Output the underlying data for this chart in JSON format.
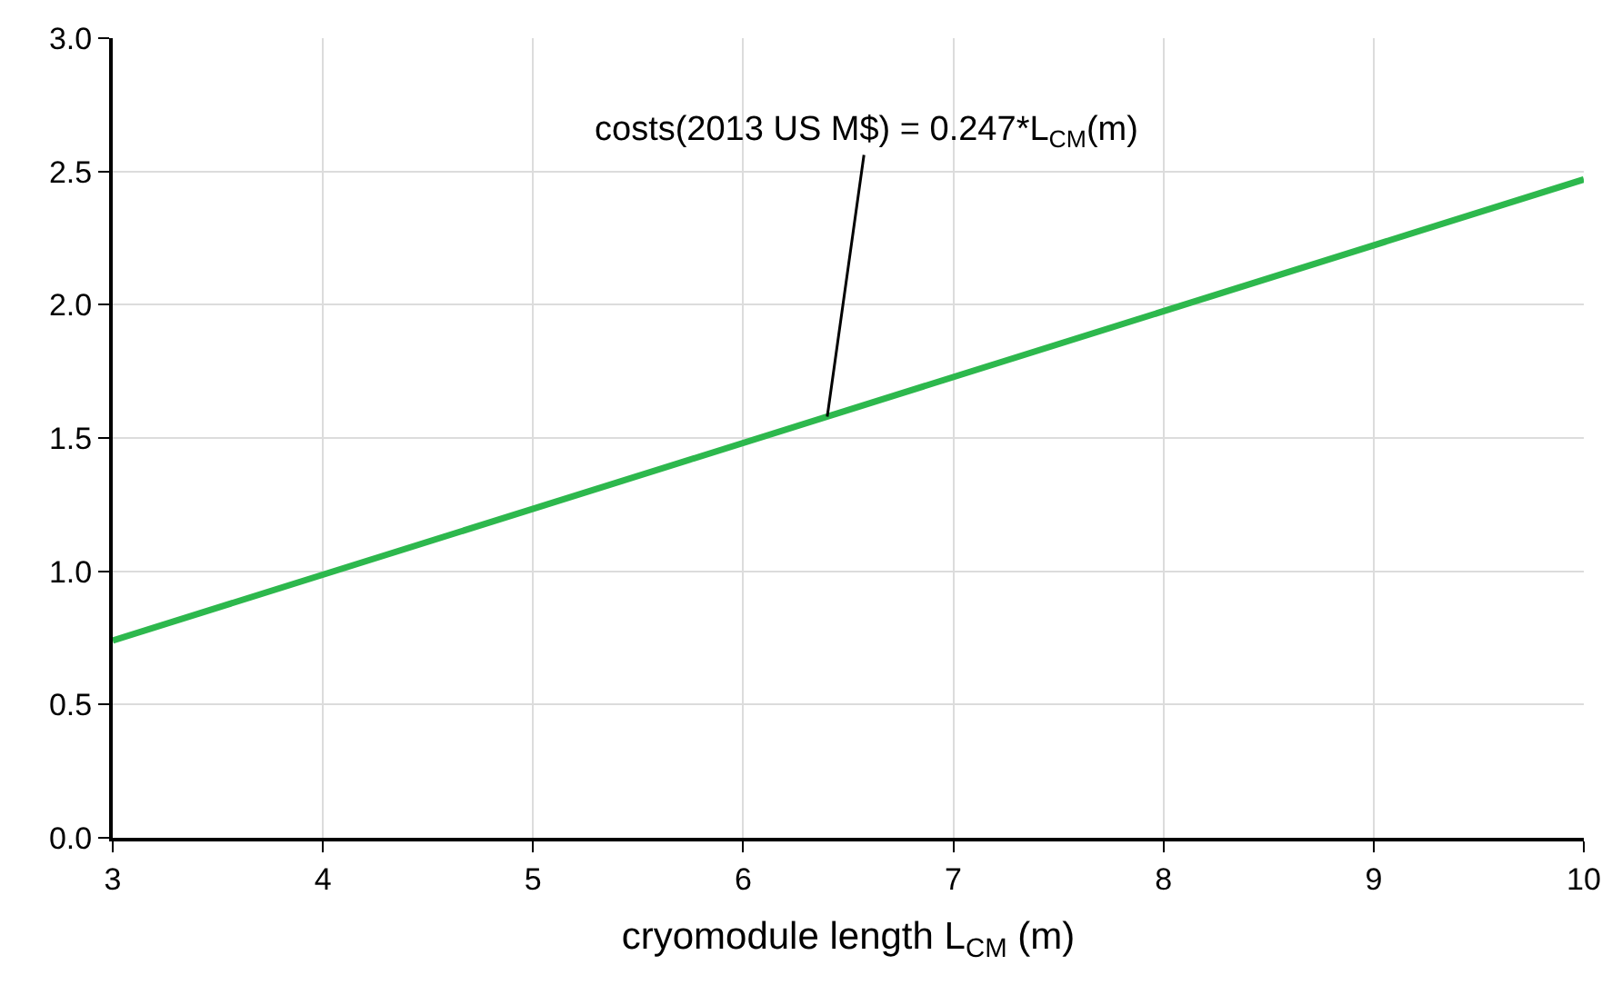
{
  "chart_data": {
    "type": "line",
    "xlabel": "cryomodule length L$_{CM}$ (m)",
    "x": [
      3,
      10
    ],
    "series": [
      {
        "color": "#2db84d",
        "values": [
          0.74,
          2.47
        ]
      }
    ],
    "xlim": [
      3,
      10
    ],
    "xticks": [
      3,
      4,
      5,
      6,
      7,
      8,
      9,
      10
    ],
    "ylim": [
      0,
      3
    ],
    "yticks": [
      {
        "value": 0,
        "label": "0.0"
      },
      {
        "value": 0.5,
        "label": "0.5"
      },
      {
        "value": 1,
        "label": "1.0"
      },
      {
        "value": 1.5,
        "label": "1.5"
      },
      {
        "value": 2,
        "label": "2.0"
      },
      {
        "value": 2.5,
        "label": "2.5"
      },
      {
        "value": 3,
        "label": "3.0"
      }
    ],
    "grid": true,
    "marker": "none",
    "line_style": "solid",
    "annotations": [
      {
        "text": "costs(2013 US M$) = 0.247*L$_{CM}$(m)",
        "x": 6.4,
        "y": 1.58
      }
    ]
  }
}
